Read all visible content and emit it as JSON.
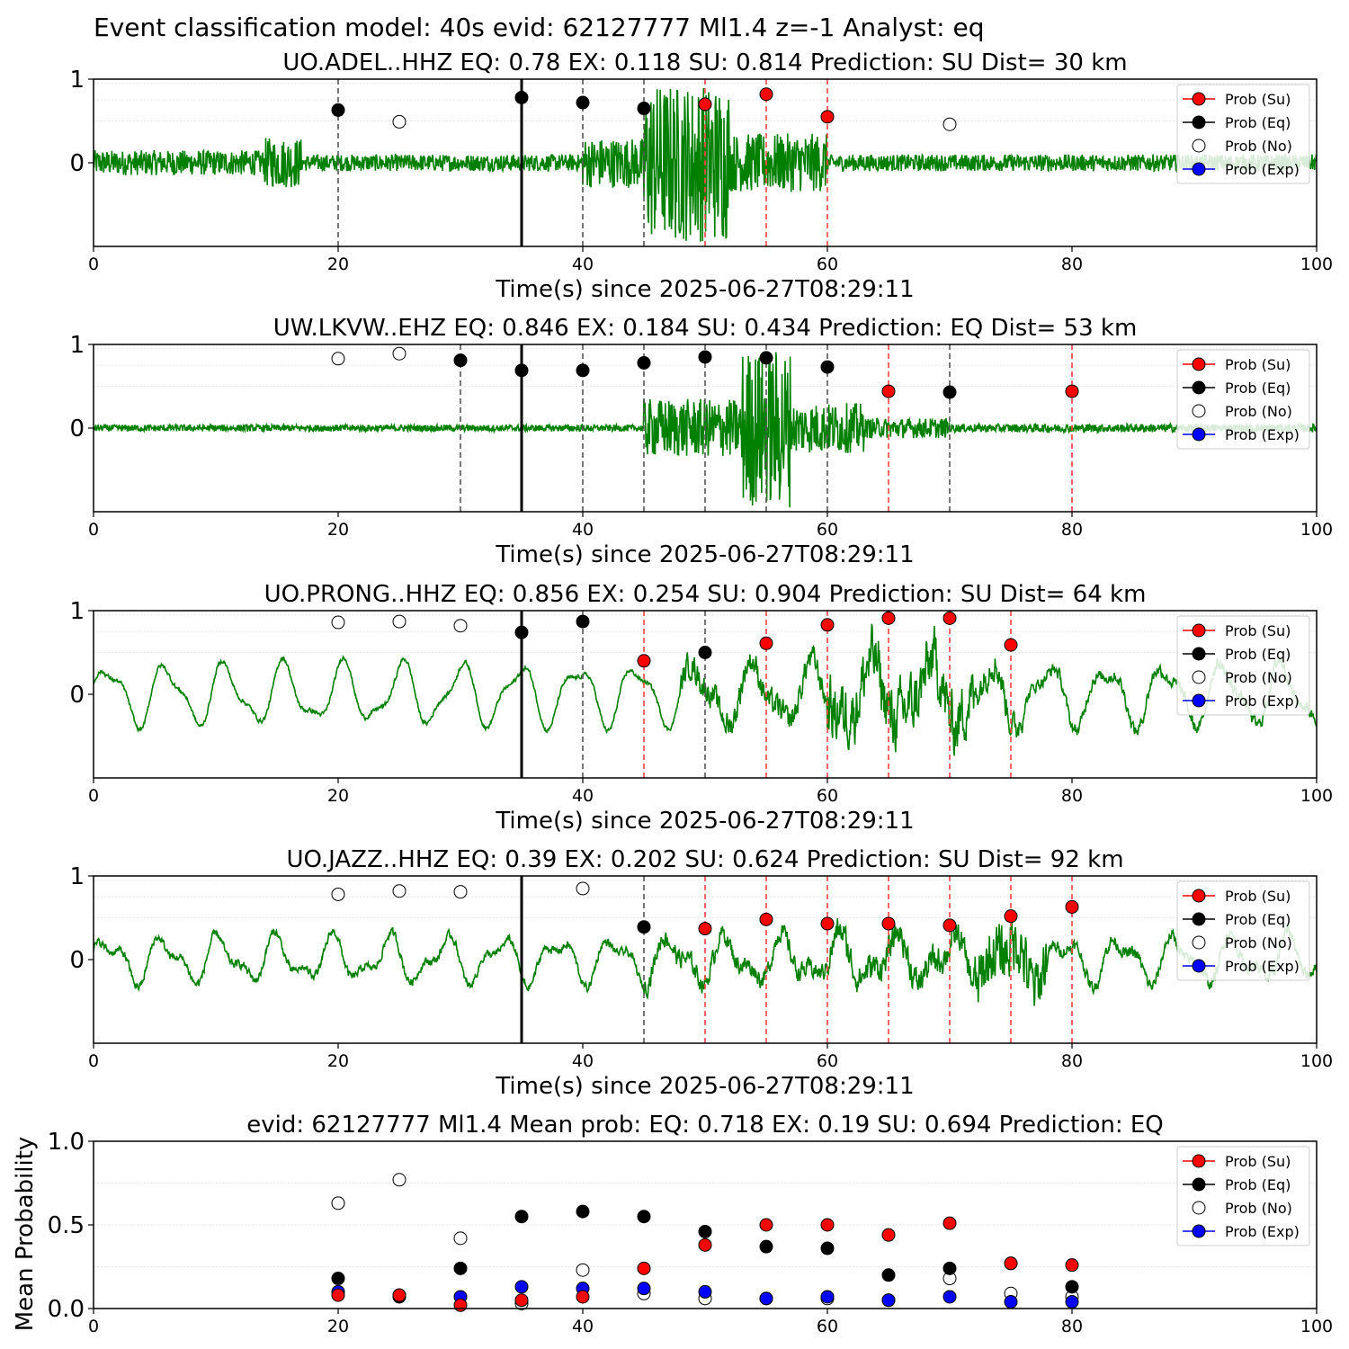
{
  "suptitle": "Event classification model: 40s evid: 62127777 Ml1.4 z=-1 Analyst: eq",
  "colors": {
    "waveform": "#008000",
    "su": "#ff0000",
    "eq": "#000000",
    "no": "#ffffff",
    "exp": "#0000ff",
    "red_line": "#ff4444",
    "gray_line": "#555555",
    "black_line": "#000000"
  },
  "legend": {
    "placement": "top-right",
    "entries": [
      "Prob (Su)",
      "Prob (Eq)",
      "Prob (No)",
      "Prob (Exp)"
    ]
  },
  "chart_data": [
    {
      "type": "scatter",
      "title": "UO.ADEL..HHZ   EQ: 0.78  EX: 0.118  SU: 0.814   Prediction: SU    Dist= 30 km",
      "xlabel": "Time(s) since 2025-06-27T08:29:11",
      "xlim": [
        0,
        100
      ],
      "ylim": [
        -1,
        1
      ],
      "xticks": [
        "0",
        "20",
        "40",
        "60",
        "80",
        "100"
      ],
      "yticks": [
        "1",
        "0"
      ],
      "waveform": {
        "style": "noisy",
        "envelope_peak": 47.5,
        "segments": [
          [
            0,
            14,
            0.15
          ],
          [
            14,
            17,
            0.3
          ],
          [
            17,
            40,
            0.1
          ],
          [
            40,
            45,
            0.3
          ],
          [
            45,
            52,
            0.95
          ],
          [
            52,
            60,
            0.35
          ],
          [
            60,
            100,
            0.1
          ]
        ]
      },
      "pick_line_x": 35,
      "window_lines": [
        {
          "x": 20,
          "class": "eq"
        },
        {
          "x": 40,
          "class": "eq"
        },
        {
          "x": 45,
          "class": "eq"
        },
        {
          "x": 50,
          "class": "su"
        },
        {
          "x": 55,
          "class": "su"
        },
        {
          "x": 60,
          "class": "su"
        }
      ],
      "points": [
        {
          "x": 20,
          "y": 0.63,
          "class": "eq"
        },
        {
          "x": 25,
          "y": 0.49,
          "class": "no"
        },
        {
          "x": 35,
          "y": 0.78,
          "class": "eq"
        },
        {
          "x": 40,
          "y": 0.72,
          "class": "eq"
        },
        {
          "x": 45,
          "y": 0.65,
          "class": "eq"
        },
        {
          "x": 50,
          "y": 0.7,
          "class": "su"
        },
        {
          "x": 55,
          "y": 0.82,
          "class": "su"
        },
        {
          "x": 60,
          "y": 0.55,
          "class": "su"
        },
        {
          "x": 70,
          "y": 0.46,
          "class": "no"
        }
      ]
    },
    {
      "type": "scatter",
      "title": "UW.LKVW..EHZ   EQ: 0.846  EX: 0.184  SU: 0.434   Prediction: EQ    Dist= 53 km",
      "xlabel": "Time(s) since 2025-06-27T08:29:11",
      "xlim": [
        0,
        100
      ],
      "ylim": [
        -1,
        1
      ],
      "xticks": [
        "0",
        "20",
        "40",
        "60",
        "80",
        "100"
      ],
      "yticks": [
        "1",
        "0"
      ],
      "waveform": {
        "style": "noisy",
        "envelope_peak": 55,
        "segments": [
          [
            0,
            45,
            0.04
          ],
          [
            45,
            53,
            0.35
          ],
          [
            53,
            57,
            0.95
          ],
          [
            57,
            63,
            0.3
          ],
          [
            63,
            70,
            0.12
          ],
          [
            70,
            100,
            0.05
          ]
        ]
      },
      "pick_line_x": 35,
      "window_lines": [
        {
          "x": 30,
          "class": "eq"
        },
        {
          "x": 40,
          "class": "eq"
        },
        {
          "x": 45,
          "class": "eq"
        },
        {
          "x": 50,
          "class": "eq"
        },
        {
          "x": 55,
          "class": "eq"
        },
        {
          "x": 60,
          "class": "eq"
        },
        {
          "x": 65,
          "class": "su"
        },
        {
          "x": 70,
          "class": "eq"
        },
        {
          "x": 80,
          "class": "su"
        }
      ],
      "points": [
        {
          "x": 20,
          "y": 0.83,
          "class": "no"
        },
        {
          "x": 25,
          "y": 0.89,
          "class": "no"
        },
        {
          "x": 30,
          "y": 0.81,
          "class": "eq"
        },
        {
          "x": 35,
          "y": 0.69,
          "class": "eq"
        },
        {
          "x": 40,
          "y": 0.69,
          "class": "eq"
        },
        {
          "x": 45,
          "y": 0.78,
          "class": "eq"
        },
        {
          "x": 50,
          "y": 0.85,
          "class": "eq"
        },
        {
          "x": 55,
          "y": 0.84,
          "class": "eq"
        },
        {
          "x": 60,
          "y": 0.73,
          "class": "eq"
        },
        {
          "x": 65,
          "y": 0.44,
          "class": "su"
        },
        {
          "x": 70,
          "y": 0.43,
          "class": "eq"
        },
        {
          "x": 80,
          "y": 0.44,
          "class": "su"
        }
      ]
    },
    {
      "type": "scatter",
      "title": "UO.PRONG..HHZ   EQ: 0.856  EX: 0.254  SU: 0.904   Prediction: SU    Dist= 64 km",
      "xlabel": "Time(s) since 2025-06-27T08:29:11",
      "xlim": [
        0,
        100
      ],
      "ylim": [
        -1,
        1
      ],
      "xticks": [
        "0",
        "20",
        "40",
        "60",
        "80",
        "100"
      ],
      "yticks": [
        "1",
        "0"
      ],
      "waveform": {
        "style": "swell",
        "period": 4.8,
        "swell_amp": 0.32,
        "segments": [
          [
            0,
            48,
            0.04
          ],
          [
            48,
            60,
            0.25
          ],
          [
            60,
            72,
            0.6
          ],
          [
            72,
            76,
            0.3
          ],
          [
            76,
            100,
            0.12
          ]
        ]
      },
      "pick_line_x": 35,
      "window_lines": [
        {
          "x": 40,
          "class": "eq"
        },
        {
          "x": 45,
          "class": "su"
        },
        {
          "x": 50,
          "class": "eq"
        },
        {
          "x": 55,
          "class": "su"
        },
        {
          "x": 60,
          "class": "su"
        },
        {
          "x": 65,
          "class": "su"
        },
        {
          "x": 70,
          "class": "su"
        },
        {
          "x": 75,
          "class": "su"
        }
      ],
      "points": [
        {
          "x": 20,
          "y": 0.86,
          "class": "no"
        },
        {
          "x": 25,
          "y": 0.87,
          "class": "no"
        },
        {
          "x": 30,
          "y": 0.82,
          "class": "no"
        },
        {
          "x": 35,
          "y": 0.74,
          "class": "eq"
        },
        {
          "x": 40,
          "y": 0.87,
          "class": "eq"
        },
        {
          "x": 45,
          "y": 0.4,
          "class": "su"
        },
        {
          "x": 50,
          "y": 0.5,
          "class": "eq"
        },
        {
          "x": 55,
          "y": 0.61,
          "class": "su"
        },
        {
          "x": 60,
          "y": 0.83,
          "class": "su"
        },
        {
          "x": 65,
          "y": 0.91,
          "class": "su"
        },
        {
          "x": 70,
          "y": 0.91,
          "class": "su"
        },
        {
          "x": 75,
          "y": 0.59,
          "class": "su"
        }
      ]
    },
    {
      "type": "scatter",
      "title": "UO.JAZZ..HHZ   EQ: 0.39  EX: 0.202  SU: 0.624   Prediction: SU    Dist= 92 km",
      "xlabel": "Time(s) since 2025-06-27T08:29:11",
      "xlim": [
        0,
        100
      ],
      "ylim": [
        -1,
        1
      ],
      "xticks": [
        "0",
        "20",
        "40",
        "60",
        "80",
        "100"
      ],
      "yticks": [
        "1",
        "0"
      ],
      "waveform": {
        "style": "swell",
        "period": 4.6,
        "swell_amp": 0.22,
        "segments": [
          [
            0,
            45,
            0.08
          ],
          [
            45,
            60,
            0.18
          ],
          [
            60,
            72,
            0.28
          ],
          [
            72,
            78,
            0.6
          ],
          [
            78,
            100,
            0.12
          ]
        ]
      },
      "pick_line_x": 35,
      "window_lines": [
        {
          "x": 45,
          "class": "eq"
        },
        {
          "x": 50,
          "class": "su"
        },
        {
          "x": 55,
          "class": "su"
        },
        {
          "x": 60,
          "class": "su"
        },
        {
          "x": 65,
          "class": "su"
        },
        {
          "x": 70,
          "class": "su"
        },
        {
          "x": 75,
          "class": "su"
        },
        {
          "x": 80,
          "class": "su"
        }
      ],
      "points": [
        {
          "x": 20,
          "y": 0.78,
          "class": "no"
        },
        {
          "x": 25,
          "y": 0.82,
          "class": "no"
        },
        {
          "x": 30,
          "y": 0.81,
          "class": "no"
        },
        {
          "x": 40,
          "y": 0.85,
          "class": "no"
        },
        {
          "x": 45,
          "y": 0.39,
          "class": "eq"
        },
        {
          "x": 50,
          "y": 0.37,
          "class": "su"
        },
        {
          "x": 55,
          "y": 0.48,
          "class": "su"
        },
        {
          "x": 60,
          "y": 0.43,
          "class": "su"
        },
        {
          "x": 65,
          "y": 0.43,
          "class": "su"
        },
        {
          "x": 70,
          "y": 0.41,
          "class": "su"
        },
        {
          "x": 75,
          "y": 0.52,
          "class": "su"
        },
        {
          "x": 80,
          "y": 0.63,
          "class": "su"
        }
      ]
    },
    {
      "type": "scatter",
      "title": "evid: 62127777  Ml1.4   Mean prob:   EQ: 0.718  EX: 0.19  SU: 0.694   Prediction: EQ",
      "ylabel": "Mean Probability",
      "xlim": [
        0,
        100
      ],
      "ylim": [
        0,
        1
      ],
      "xticks": [
        "0",
        "20",
        "40",
        "60",
        "80",
        "100"
      ],
      "yticks": [
        "0.0",
        "0.5",
        "1.0"
      ],
      "series": [
        {
          "class": "no",
          "x": [
            20,
            25,
            30,
            35,
            40,
            45,
            50,
            55,
            60,
            65,
            70,
            75,
            80
          ],
          "y": [
            0.63,
            0.77,
            0.42,
            0.03,
            0.23,
            0.09,
            0.06,
            0.06,
            0.06,
            0.05,
            0.18,
            0.09,
            0.07
          ]
        },
        {
          "class": "exp",
          "x": [
            20,
            25,
            30,
            35,
            40,
            45,
            50,
            55,
            60,
            65,
            70,
            75,
            80
          ],
          "y": [
            0.1,
            0.08,
            0.07,
            0.13,
            0.12,
            0.12,
            0.1,
            0.06,
            0.07,
            0.05,
            0.07,
            0.04,
            0.04
          ]
        },
        {
          "class": "eq",
          "x": [
            20,
            25,
            30,
            35,
            40,
            45,
            50,
            55,
            60,
            65,
            70,
            75,
            80
          ],
          "y": [
            0.18,
            0.07,
            0.24,
            0.55,
            0.58,
            0.55,
            0.46,
            0.37,
            0.36,
            0.2,
            0.24,
            0.27,
            0.13
          ]
        },
        {
          "class": "su",
          "x": [
            20,
            25,
            30,
            35,
            40,
            45,
            50,
            55,
            60,
            65,
            70,
            75,
            80
          ],
          "y": [
            0.08,
            0.08,
            0.02,
            0.05,
            0.07,
            0.24,
            0.38,
            0.5,
            0.5,
            0.44,
            0.51,
            0.27,
            0.26
          ]
        }
      ]
    }
  ]
}
